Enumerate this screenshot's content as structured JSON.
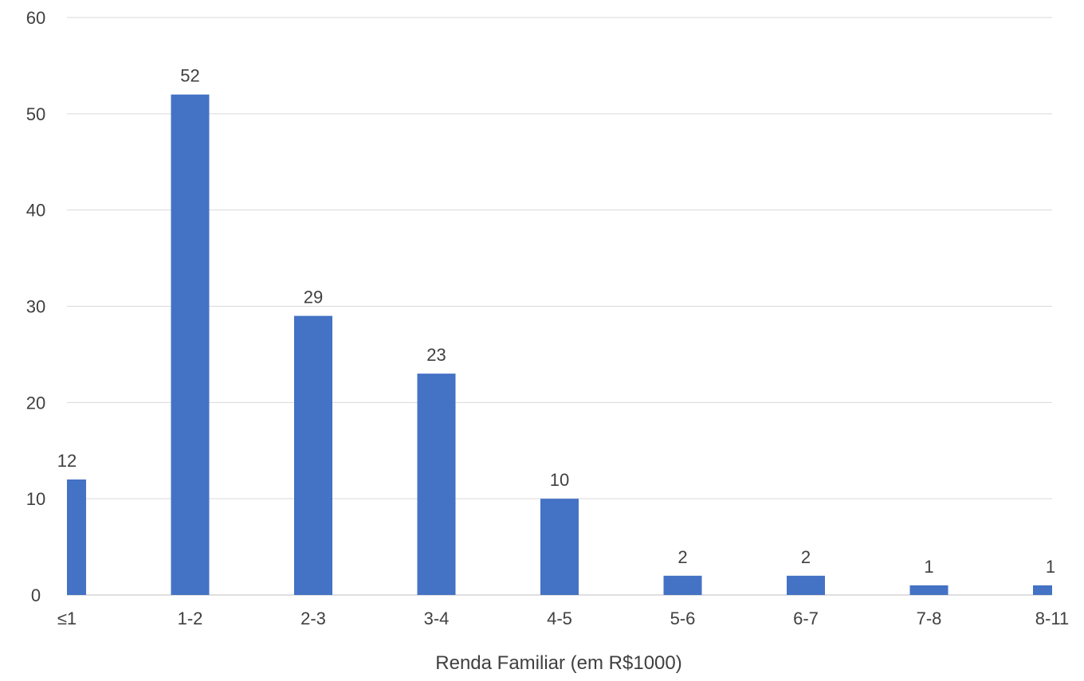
{
  "chart_data": {
    "type": "bar",
    "categories": [
      "≤1",
      "1-2",
      "2-3",
      "3-4",
      "4-5",
      "5-6",
      "6-7",
      "7-8",
      "8-11"
    ],
    "values": [
      12,
      52,
      29,
      23,
      10,
      2,
      2,
      1,
      1
    ],
    "title": "",
    "xlabel": "Renda Familiar (em R$1000)",
    "ylabel": "",
    "ylim": [
      0,
      60
    ],
    "yticks": [
      0,
      10,
      20,
      30,
      40,
      50,
      60
    ],
    "grid": true,
    "legend": "none",
    "bar_color": "#4472c4",
    "data_labels": true
  }
}
